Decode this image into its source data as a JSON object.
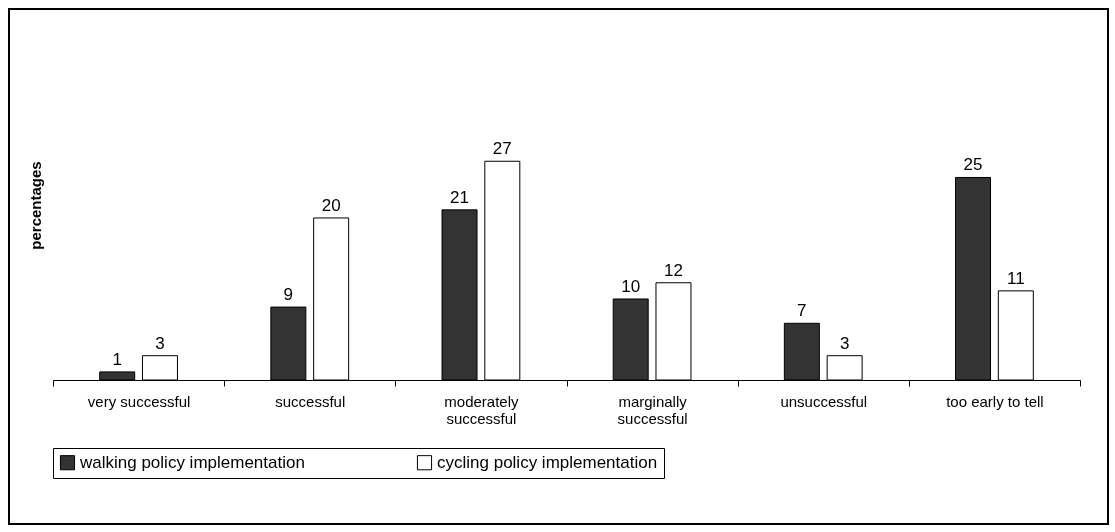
{
  "chart_data": {
    "type": "bar",
    "ylabel": "percentages",
    "categories": [
      "very successful",
      "successful",
      "moderately successful",
      "marginally successful",
      "unsuccessful",
      "too early to tell"
    ],
    "series": [
      {
        "name": "walking policy implementation",
        "color": "#333333",
        "values": [
          1,
          9,
          21,
          10,
          7,
          25
        ]
      },
      {
        "name": "cycling policy implementation",
        "color": "#ffffff",
        "values": [
          3,
          20,
          27,
          12,
          3,
          11
        ]
      }
    ],
    "data_labels": true,
    "legend": "bottom",
    "tick_labels": "x",
    "grid": false
  }
}
